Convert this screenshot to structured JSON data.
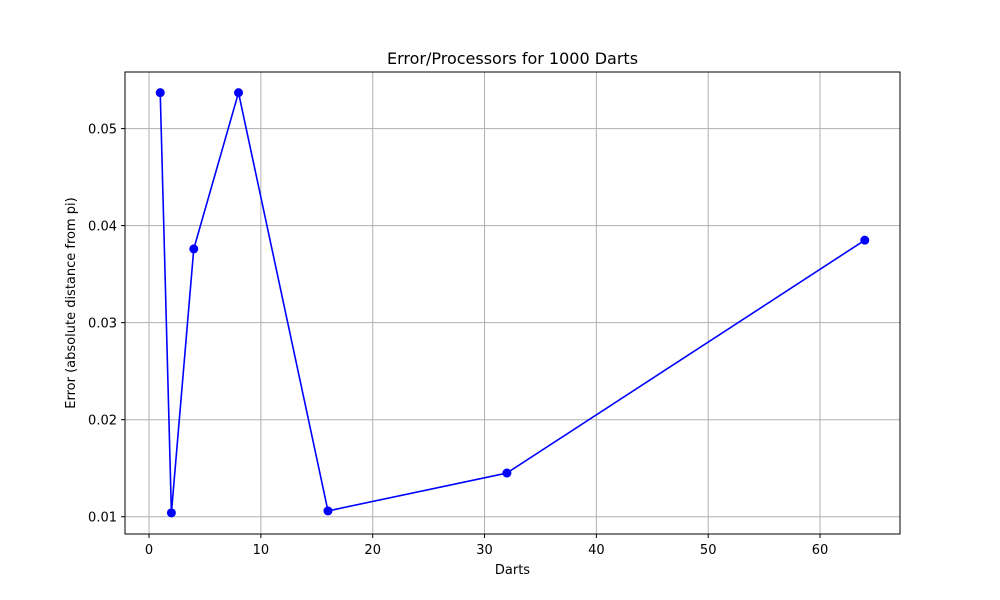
{
  "chart_data": {
    "type": "line",
    "title": "Error/Processors for 1000 Darts",
    "xlabel": "Darts",
    "ylabel": "Error (absolute distance from pi)",
    "xlim": [
      -2.15,
      67.15
    ],
    "ylim": [
      0.00822,
      0.05583
    ],
    "xticks": [
      0,
      10,
      20,
      30,
      40,
      50,
      60
    ],
    "yticks": [
      0.01,
      0.02,
      0.03,
      0.04,
      0.05
    ],
    "ytick_labels": [
      "0.01",
      "0.02",
      "0.03",
      "0.04",
      "0.05"
    ],
    "grid": true,
    "series": [
      {
        "color": "#0000ff",
        "marker": "circle",
        "x": [
          1,
          2,
          4,
          8,
          16,
          32,
          64
        ],
        "y": [
          0.0537,
          0.0104,
          0.0376,
          0.0537,
          0.0106,
          0.0145,
          0.0385
        ]
      }
    ]
  }
}
